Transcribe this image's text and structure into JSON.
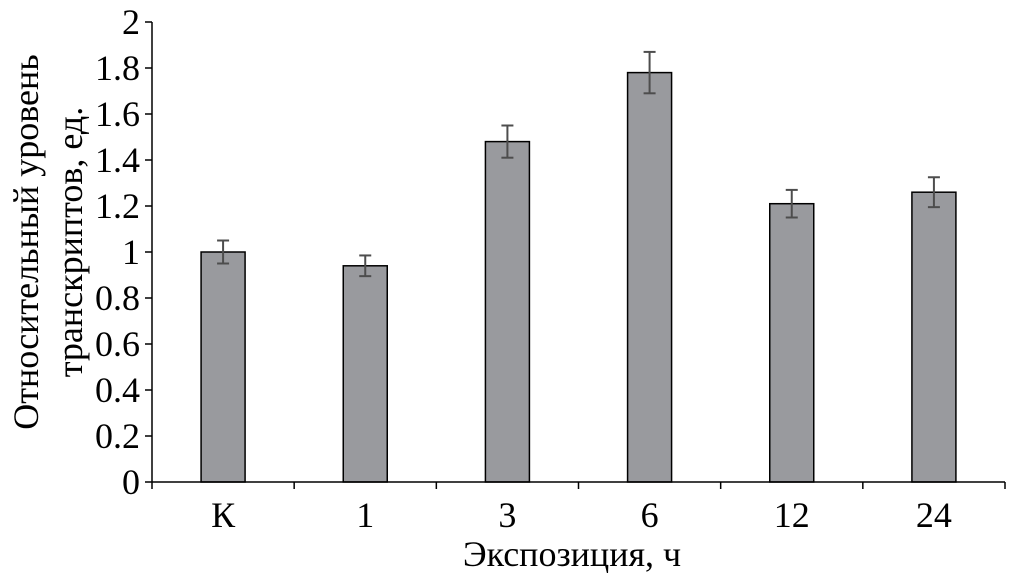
{
  "chart_data": {
    "type": "bar",
    "categories": [
      "К",
      "1",
      "3",
      "6",
      "12",
      "24"
    ],
    "values": [
      1.0,
      0.94,
      1.48,
      1.78,
      1.21,
      1.26
    ],
    "errors": [
      0.05,
      0.045,
      0.07,
      0.09,
      0.06,
      0.065
    ],
    "xlabel": "Экспозиция, ч",
    "ylabel_lines": [
      "Относительный уровень",
      "транскриптов, ед."
    ],
    "ylim": [
      0,
      2
    ],
    "yticks": [
      0,
      0.2,
      0.4,
      0.6,
      0.8,
      1,
      1.2,
      1.4,
      1.6,
      1.8,
      2
    ],
    "ytick_labels": [
      "0",
      "0.2",
      "0.4",
      "0.6",
      "0.8",
      "1",
      "1.2",
      "1.4",
      "1.6",
      "1.8",
      "2"
    ],
    "grid": false,
    "colors": {
      "bar_fill": "#999a9e",
      "bar_stroke": "#000000",
      "error_bar": "#4d4d4d",
      "axis": "#000000"
    }
  }
}
